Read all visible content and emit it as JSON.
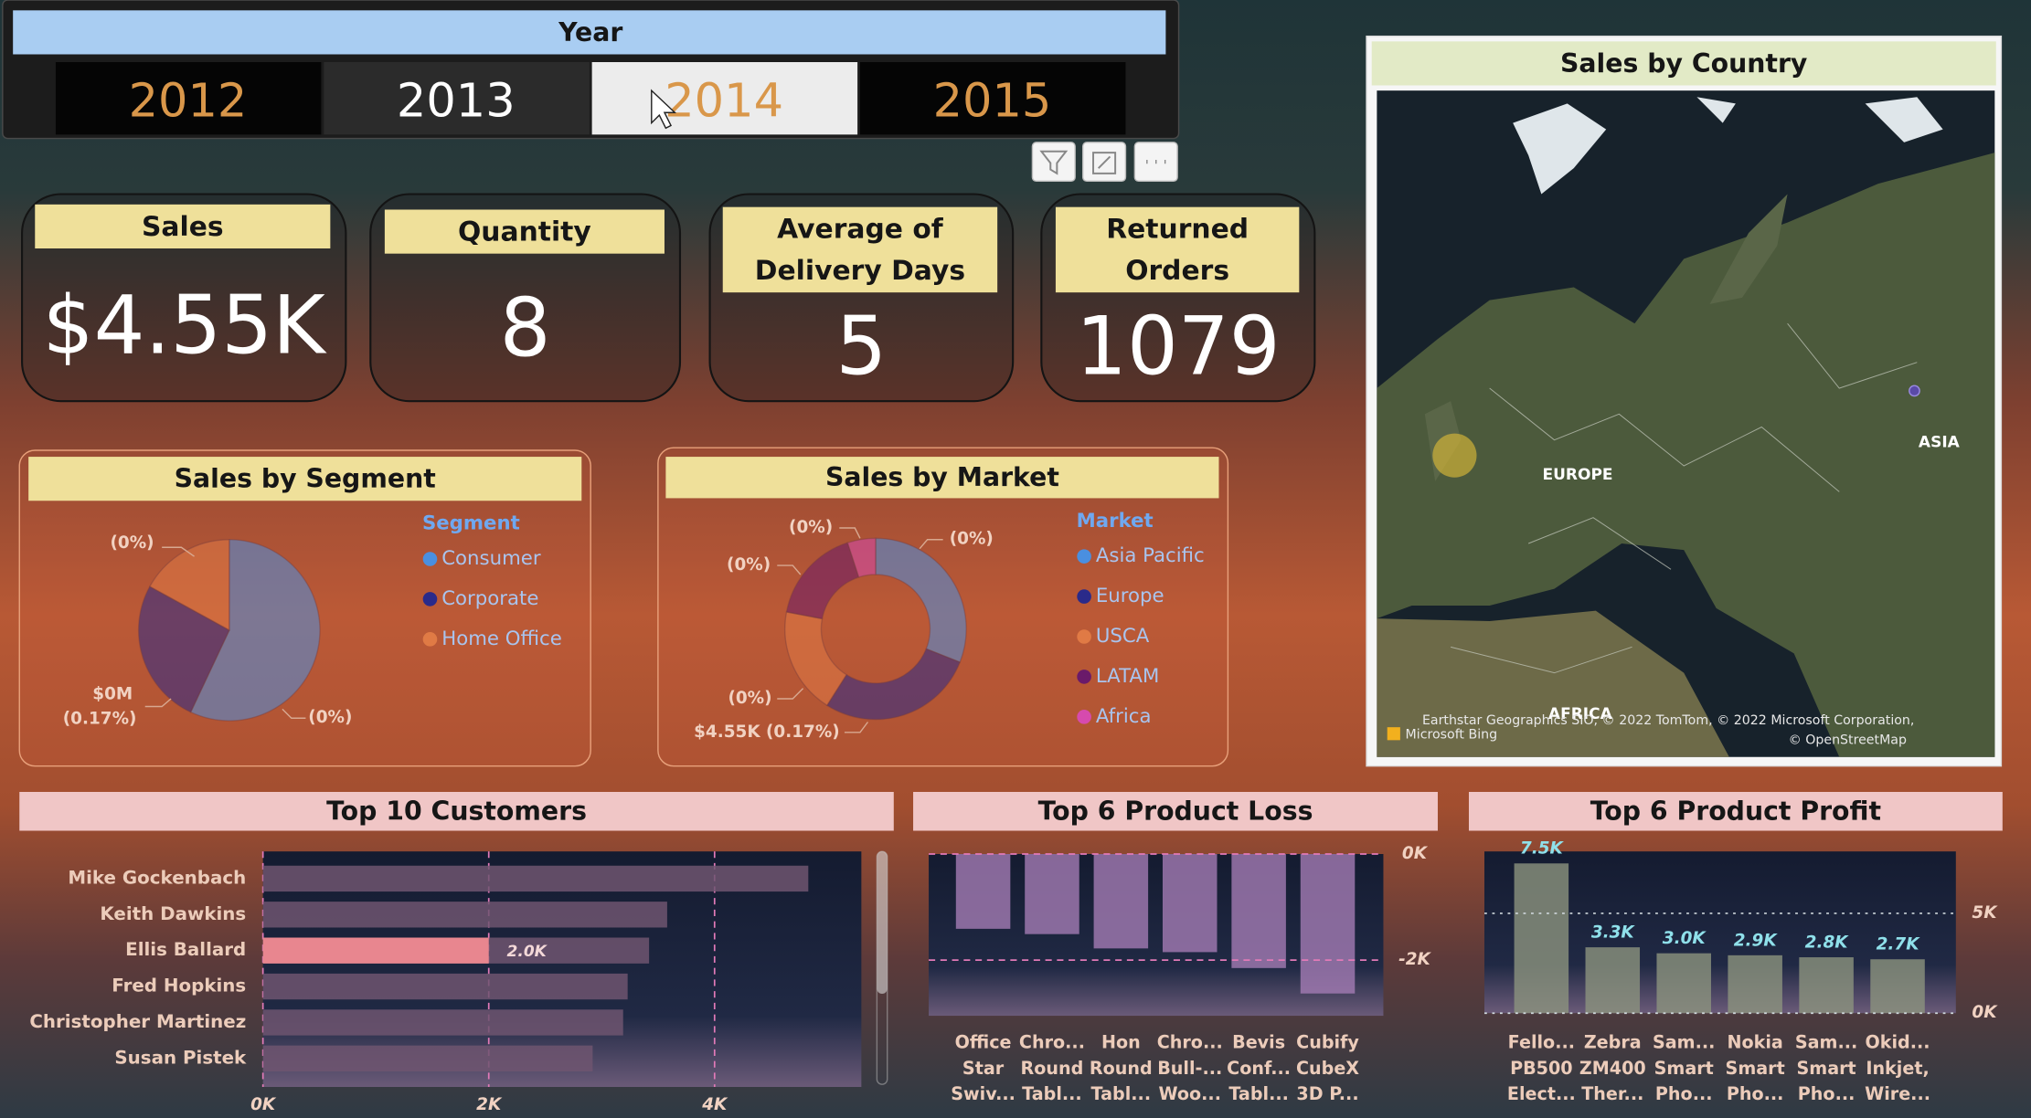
{
  "slicer": {
    "title": "Year",
    "options": [
      "2012",
      "2013",
      "2014",
      "2015"
    ]
  },
  "kpis": [
    {
      "label": "Sales",
      "value": "$4.55K"
    },
    {
      "label": "Quantity",
      "value": "8"
    },
    {
      "label": "Average of Delivery Days",
      "value": "5"
    },
    {
      "label": "Returned Orders",
      "value": "1079"
    }
  ],
  "chart_data": [
    {
      "type": "pie",
      "title": "Sales by Segment",
      "legend_title": "Segment",
      "categories": [
        "Consumer",
        "Corporate",
        "Home Office"
      ],
      "values": [
        57,
        26,
        17
      ],
      "colors": [
        "#4a8fe0",
        "#2a2a8a",
        "#e07a45"
      ],
      "annotations": [
        "(0%)",
        "$0M",
        "(0.17%)",
        "(0%)"
      ]
    },
    {
      "type": "donut",
      "title": "Sales by Market",
      "legend_title": "Market",
      "categories": [
        "Asia Pacific",
        "Europe",
        "USCA",
        "LATAM",
        "Africa"
      ],
      "values": [
        31,
        28,
        19,
        17,
        5
      ],
      "colors": [
        "#4a8fe0",
        "#2a2a8a",
        "#e07a45",
        "#6a1a6a",
        "#d64aae"
      ],
      "annotations": [
        "(0%)",
        "(0%)",
        "(0%)",
        "(0%)",
        "$4.55K (0.17%)"
      ]
    },
    {
      "type": "map",
      "title": "Sales by Country",
      "labels": [
        "EUROPE",
        "ASIA",
        "AFRICA"
      ],
      "attribution": [
        "Earthstar Geographics SIO, © 2022 TomTom, © 2022 Microsoft Corporation,",
        "© OpenStreetMap",
        "Microsoft Bing"
      ]
    },
    {
      "type": "hbar",
      "title": "Top 10 Customers",
      "categories": [
        "Mike Gockenbach",
        "Keith Dawkins",
        "Ellis Ballard",
        "Fred Hopkins",
        "Christopher Martinez",
        "Susan Pistek"
      ],
      "values": [
        4830,
        3580,
        3420,
        3230,
        3190,
        2920
      ],
      "color": "#6e5570",
      "highlight": {
        "values": [
          null,
          null,
          2000,
          null,
          null,
          null
        ],
        "value_labels": [
          null,
          null,
          "2.0K",
          null,
          null,
          null
        ],
        "color": "#e8868f"
      },
      "xlim": [
        0,
        5300
      ],
      "xticks": [
        {
          "value": 0,
          "label": "0K"
        },
        {
          "value": 2000,
          "label": "2K"
        },
        {
          "value": 4000,
          "label": "4K"
        }
      ],
      "grid": true
    },
    {
      "type": "bar",
      "title": "Top 6 Product Loss",
      "categories": [
        "Office Star Swiv...",
        "Chro... Round Tabl...",
        "Hon Round Tabl...",
        "Chro... Bull-... Woo...",
        "Bevis Conf... Tabl...",
        "Cubify CubeX 3D P..."
      ],
      "values": [
        -1410,
        -1510,
        -1780,
        -1850,
        -2150,
        -2630
      ],
      "color": "#a47cb4",
      "ylim": [
        -3050,
        0
      ],
      "yticks": [
        {
          "value": 0,
          "label": "0K"
        },
        {
          "value": -2000,
          "label": "-2K"
        }
      ],
      "grid": true
    },
    {
      "type": "bar",
      "title": "Top 6 Product Profit",
      "categories": [
        "Fello... PB500 Elect...",
        "Zebra ZM400 Ther...",
        "Sam... Smart Pho...",
        "Nokia Smart Pho...",
        "Sam... Smart Pho...",
        "Okid... Inkjet, Wire..."
      ],
      "values": [
        7500,
        3300,
        3000,
        2900,
        2800,
        2700
      ],
      "value_labels": [
        "7.5K",
        "3.3K",
        "3.0K",
        "2.9K",
        "2.8K",
        "2.7K"
      ],
      "color": "#8c937e",
      "ylim": [
        0,
        8100
      ],
      "yticks": [
        {
          "value": 0,
          "label": "0K"
        },
        {
          "value": 5000,
          "label": "5K"
        }
      ],
      "grid": true
    }
  ]
}
